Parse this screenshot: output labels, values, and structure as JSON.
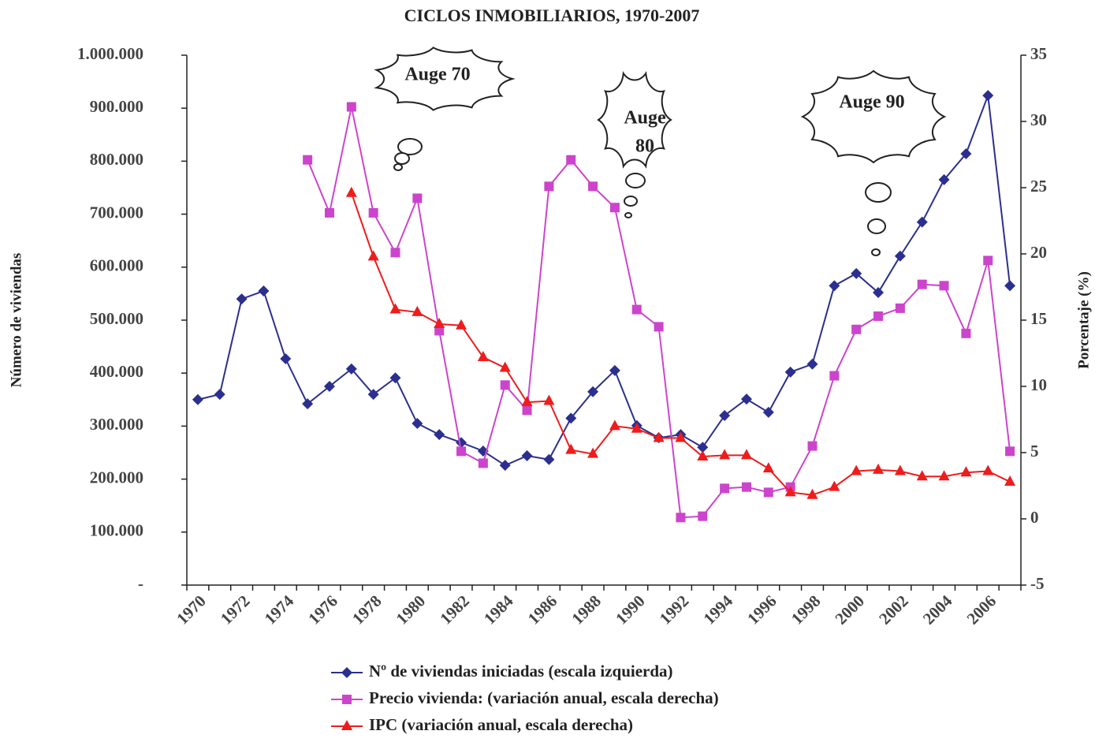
{
  "chart_data": {
    "type": "line",
    "title": "CICLOS INMOBILIARIOS, 1970-2007",
    "y_label": "Número de viviendas",
    "y2_label": "Porcentaje (%)",
    "annotations": [
      [
        "Auge 70"
      ],
      [
        "Auge",
        "80"
      ],
      [
        "Auge 90"
      ]
    ],
    "categories": [
      "1970",
      null,
      "1972",
      null,
      "1974",
      null,
      "1976",
      null,
      "1978",
      null,
      "1980",
      null,
      "1982",
      null,
      "1984",
      null,
      "1986",
      null,
      "1988",
      null,
      "1990",
      null,
      "1992",
      null,
      "1994",
      null,
      "1996",
      null,
      "1998",
      null,
      "2000",
      null,
      "2002",
      null,
      "2004",
      null,
      "2006",
      null
    ],
    "series": [
      {
        "name": "Nº de viviendas iniciadas (escala izquierda)",
        "color": "#2b2f8f",
        "marker": "diamond",
        "values": [
          350000,
          360000,
          540000,
          555000,
          427000,
          342000,
          375000,
          408000,
          360000,
          391000,
          305000,
          284000,
          269000,
          253000,
          226000,
          244000,
          237000,
          315000,
          365000,
          405000,
          301000,
          278000,
          284000,
          260000,
          320000,
          351000,
          326000,
          402000,
          417000,
          565000,
          588000,
          552000,
          621000,
          685000,
          765000,
          814000,
          924000,
          565000
        ]
      },
      {
        "name": "Precio vivienda: (variación anual, escala derecha)",
        "color": "#cc44cc",
        "marker": "square",
        "axis": "y2",
        "values": [
          null,
          null,
          null,
          null,
          null,
          27.1,
          23.1,
          31.1,
          23.1,
          20.1,
          24.2,
          14.2,
          5.1,
          4.2,
          10.1,
          8.2,
          25.1,
          27.1,
          25.1,
          23.5,
          15.8,
          14.5,
          0.1,
          0.2,
          2.3,
          2.4,
          2.0,
          2.4,
          5.5,
          10.8,
          14.3,
          15.3,
          15.9,
          17.7,
          17.6,
          14.0,
          19.5,
          5.1
        ]
      },
      {
        "name": "IPC (variación anual, escala derecha)",
        "color": "#ee1c1c",
        "marker": "triangle",
        "axis": "y2",
        "values": [
          null,
          null,
          null,
          null,
          null,
          null,
          null,
          24.6,
          19.8,
          15.8,
          15.6,
          14.7,
          14.6,
          12.2,
          11.4,
          8.8,
          8.9,
          5.2,
          4.9,
          7.0,
          6.8,
          6.1,
          6.1,
          4.7,
          4.8,
          4.8,
          3.8,
          2.0,
          1.8,
          2.4,
          3.6,
          3.7,
          3.6,
          3.2,
          3.2,
          3.5,
          3.6,
          2.8
        ]
      }
    ],
    "ylim": [
      0,
      1000000
    ],
    "yticks": [
      {
        "value": 0,
        "label": "-"
      },
      {
        "value": 100000,
        "label": "100.000"
      },
      {
        "value": 200000,
        "label": "200.000"
      },
      {
        "value": 300000,
        "label": "300.000"
      },
      {
        "value": 400000,
        "label": "400.000"
      },
      {
        "value": 500000,
        "label": "500.000"
      },
      {
        "value": 600000,
        "label": "600.000"
      },
      {
        "value": 700000,
        "label": "700.000"
      },
      {
        "value": 800000,
        "label": "800.000"
      },
      {
        "value": 900000,
        "label": "900.000"
      },
      {
        "value": 1000000,
        "label": "1.000.000"
      }
    ],
    "y2lim": [
      -5,
      35
    ],
    "y2ticks": [
      -5,
      0,
      5,
      10,
      15,
      20,
      25,
      30,
      35
    ],
    "grid": false,
    "legend": "bottom"
  }
}
